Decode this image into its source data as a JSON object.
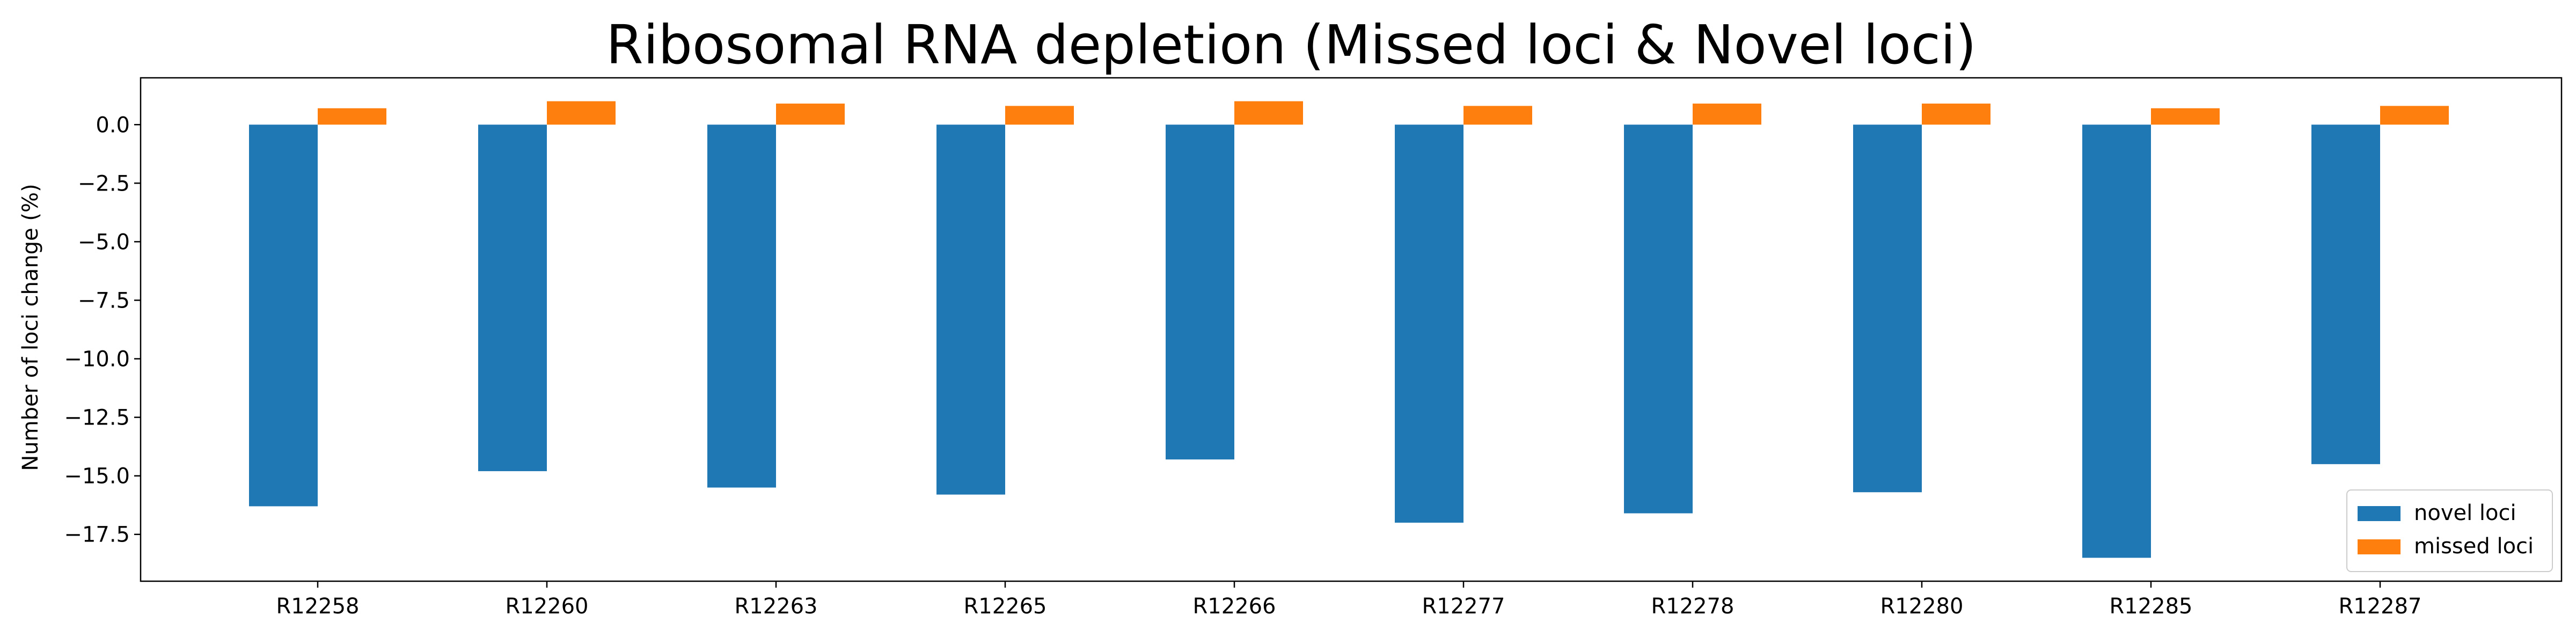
{
  "chart_data": {
    "type": "bar",
    "title": "Ribosomal RNA depletion (Missed loci & Novel loci)",
    "xlabel": "",
    "ylabel": "Number of loci change (%)",
    "ylim": [
      -19.5,
      2.0
    ],
    "yticks": [
      0.0,
      -2.5,
      -5.0,
      -7.5,
      -10.0,
      -12.5,
      -15.0,
      -17.5
    ],
    "ytick_labels": [
      "0.0",
      "−2.5",
      "−5.0",
      "−7.5",
      "−10.0",
      "−12.5",
      "−15.0",
      "−17.5"
    ],
    "categories": [
      "R12258",
      "R12260",
      "R12263",
      "R12265",
      "R12266",
      "R12277",
      "R12278",
      "R12280",
      "R12285",
      "R12287"
    ],
    "series": [
      {
        "name": "novel loci",
        "color": "#1f77b4",
        "values": [
          -16.3,
          -14.8,
          -15.5,
          -15.8,
          -14.3,
          -17.0,
          -16.6,
          -15.7,
          -18.5,
          -14.5
        ]
      },
      {
        "name": "missed loci",
        "color": "#ff7f0e",
        "values": [
          0.7,
          1.0,
          0.9,
          0.8,
          1.0,
          0.8,
          0.9,
          0.9,
          0.7,
          0.8
        ]
      }
    ],
    "legend_position": "lower-right",
    "grid": false
  }
}
